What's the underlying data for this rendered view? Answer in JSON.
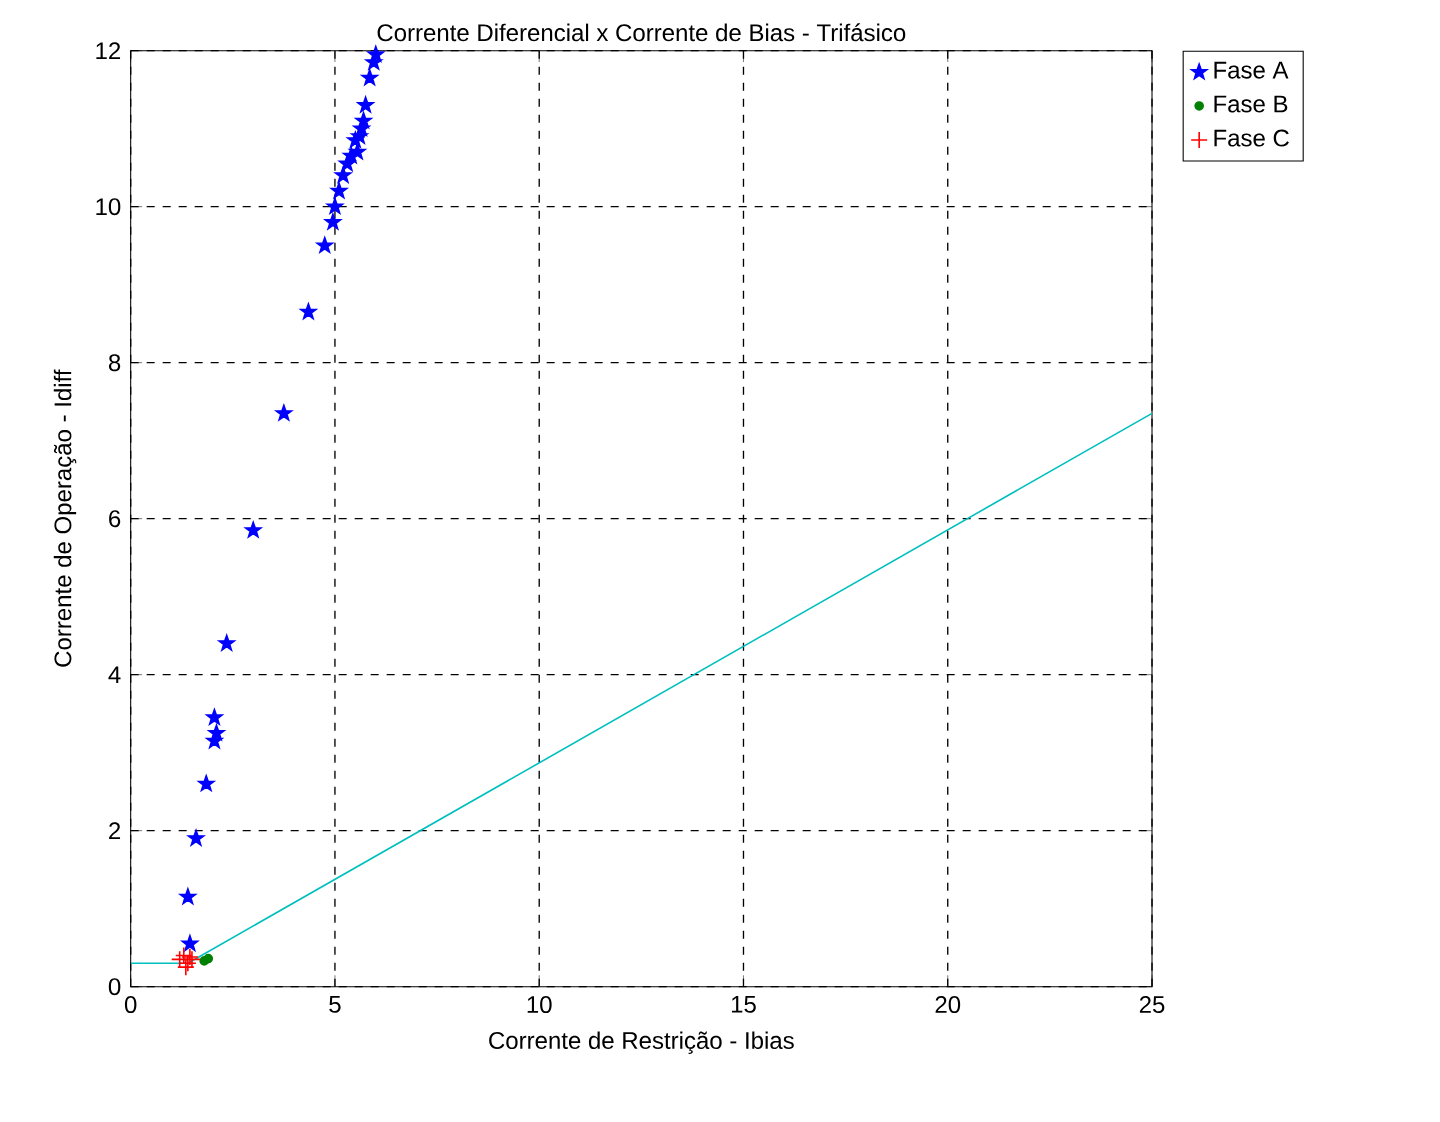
{
  "chart_data": {
    "type": "scatter",
    "title": "Corrente Diferencial x Corrente de Bias - Trifásico",
    "xlabel": "Corrente de Restrição - Ibias",
    "ylabel": "Corrente de Operação - Idiff",
    "xlim": [
      0,
      25
    ],
    "ylim": [
      0,
      12
    ],
    "xticks": [
      0,
      5,
      10,
      15,
      20,
      25
    ],
    "yticks": [
      0,
      2,
      4,
      6,
      8,
      10,
      12
    ],
    "grid": true,
    "legend": "top right",
    "series": [
      {
        "name": "Fase A",
        "color": "#0000ff",
        "marker": "star",
        "x": [
          1.45,
          1.4,
          1.6,
          1.85,
          2.05,
          2.1,
          2.05,
          2.35,
          3.0,
          3.75,
          4.35,
          4.75,
          4.95,
          5.0,
          5.1,
          5.2,
          5.3,
          5.4,
          5.5,
          5.55,
          5.6,
          5.65,
          5.7,
          5.75,
          5.85,
          5.95,
          6.0
        ],
        "values": [
          0.55,
          1.15,
          1.9,
          2.6,
          3.15,
          3.25,
          3.45,
          4.4,
          5.85,
          7.35,
          8.65,
          9.5,
          9.8,
          10.0,
          10.2,
          10.4,
          10.55,
          10.65,
          10.85,
          10.7,
          10.9,
          11.0,
          11.1,
          11.3,
          11.65,
          11.85,
          11.95
        ]
      },
      {
        "name": "Fase B",
        "color": "#008000",
        "marker": "circle",
        "x": [
          1.8,
          1.9
        ],
        "values": [
          0.33,
          0.36
        ]
      },
      {
        "name": "Fase C",
        "color": "#ff0000",
        "marker": "cross",
        "x": [
          1.2,
          1.3,
          1.4,
          1.5,
          1.35,
          1.45
        ],
        "values": [
          0.35,
          0.4,
          0.3,
          0.35,
          0.25,
          0.38
        ]
      },
      {
        "type": "line",
        "color": "#00bfbf",
        "marker": "none",
        "x": [
          0,
          1.4,
          25
        ],
        "values": [
          0.3,
          0.3,
          7.35
        ]
      }
    ]
  }
}
